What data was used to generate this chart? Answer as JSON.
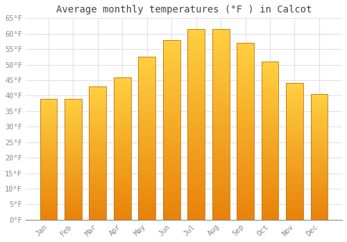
{
  "title": "Average monthly temperatures (°F ) in Calcot",
  "months": [
    "Jan",
    "Feb",
    "Mar",
    "Apr",
    "May",
    "Jun",
    "Jul",
    "Aug",
    "Sep",
    "Oct",
    "Nov",
    "Dec"
  ],
  "values": [
    39,
    39,
    43,
    46,
    52.5,
    58,
    61.5,
    61.5,
    57,
    51,
    44,
    40.5
  ],
  "bar_color_bottom": "#E8820A",
  "bar_color_top": "#FFD040",
  "bar_edge_color": "#C07010",
  "ylim": [
    0,
    65
  ],
  "yticks": [
    0,
    5,
    10,
    15,
    20,
    25,
    30,
    35,
    40,
    45,
    50,
    55,
    60,
    65
  ],
  "ytick_labels": [
    "0°F",
    "5°F",
    "10°F",
    "15°F",
    "20°F",
    "25°F",
    "30°F",
    "35°F",
    "40°F",
    "45°F",
    "50°F",
    "55°F",
    "60°F",
    "65°F"
  ],
  "background_color": "#ffffff",
  "grid_color": "#e0e0e0",
  "title_fontsize": 10,
  "tick_fontsize": 7.5,
  "font_family": "monospace",
  "bar_width": 0.7
}
